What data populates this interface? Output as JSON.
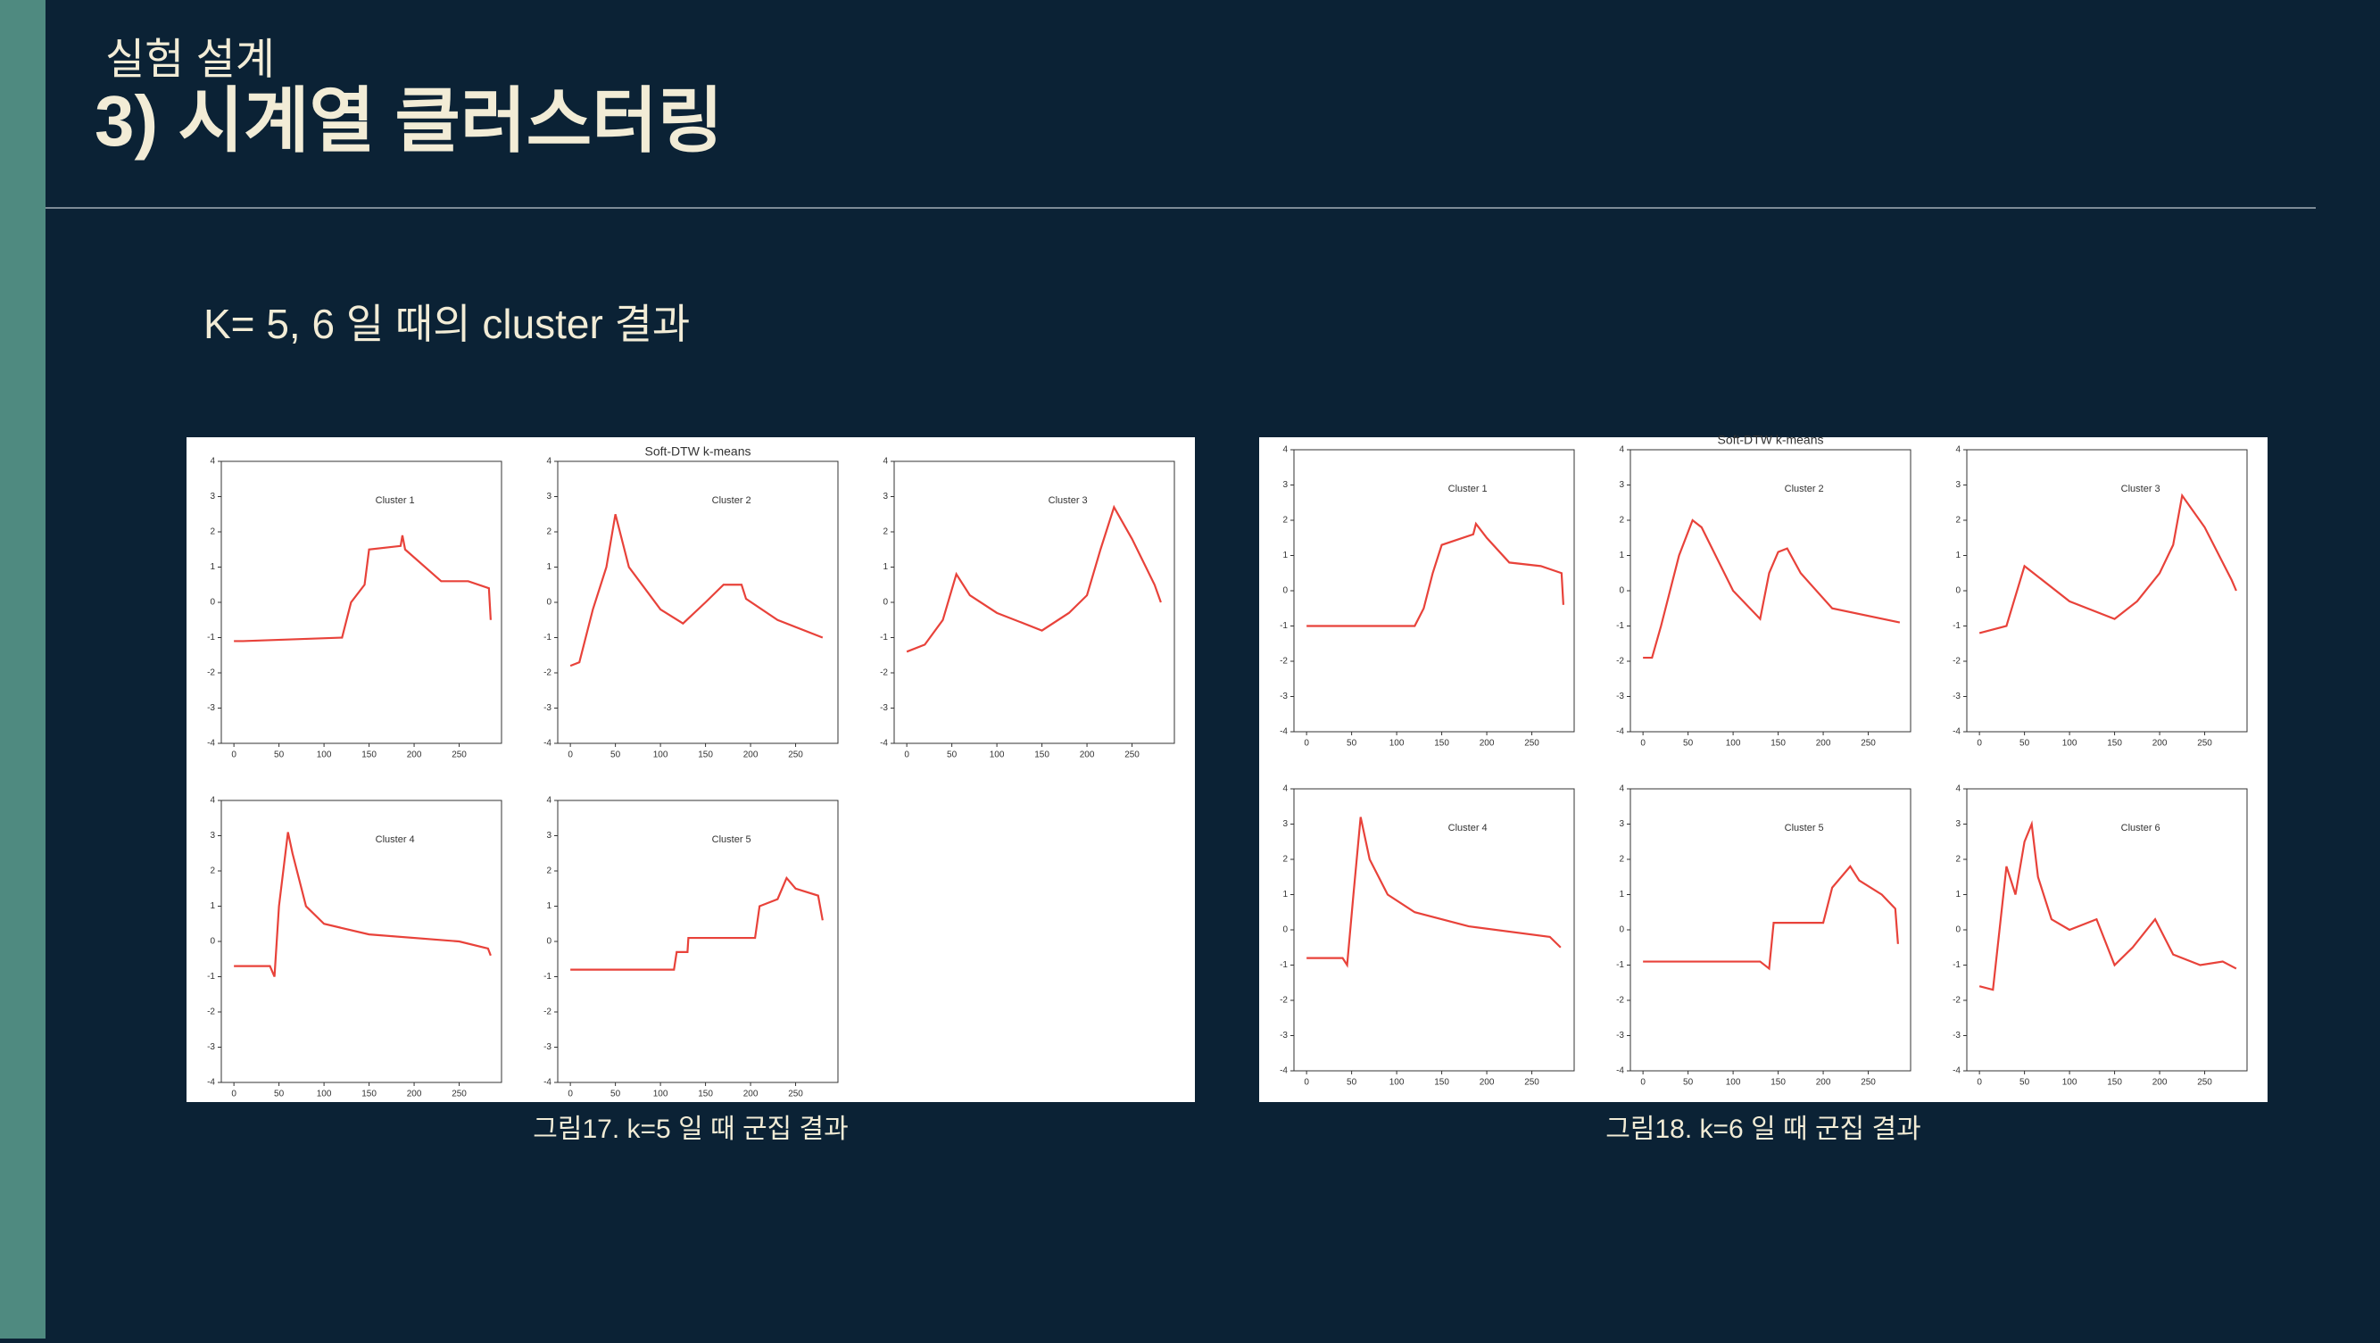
{
  "header": {
    "section": "실험 설계",
    "title": "3) 시계열 클러스터링"
  },
  "subtitle": "K= 5, 6 일 때의 cluster 결과",
  "figures": [
    {
      "chart_data": {
        "type": "line",
        "title": "Soft-DTW k-means",
        "xlim": [
          -14,
          297
        ],
        "ylim": [
          -4,
          4
        ],
        "xticks": [
          0,
          50,
          100,
          150,
          200,
          250
        ],
        "yticks": [
          4,
          3,
          2,
          1,
          0,
          -1,
          -2,
          -3,
          -4
        ],
        "color": "#e8423a",
        "panels": [
          {
            "label": "Cluster 1",
            "x": [
              0,
              10,
              120,
              130,
              145,
              150,
              185,
              187,
              190,
              230,
              260,
              283,
              285
            ],
            "y": [
              -1.1,
              -1.1,
              -1.0,
              0,
              0.5,
              1.5,
              1.6,
              1.9,
              1.5,
              0.6,
              0.6,
              0.4,
              -0.5
            ]
          },
          {
            "label": "Cluster 2",
            "x": [
              0,
              10,
              25,
              40,
              50,
              55,
              65,
              100,
              125,
              150,
              170,
              190,
              195,
              230,
              280
            ],
            "y": [
              -1.8,
              -1.7,
              -0.2,
              1.0,
              2.5,
              2.0,
              1.0,
              -0.2,
              -0.6,
              0,
              0.5,
              0.5,
              0.1,
              -0.5,
              -1.0
            ]
          },
          {
            "label": "Cluster 3",
            "x": [
              0,
              20,
              40,
              55,
              70,
              100,
              150,
              180,
              200,
              215,
              230,
              250,
              275,
              282
            ],
            "y": [
              -1.4,
              -1.2,
              -0.5,
              0.8,
              0.2,
              -0.3,
              -0.8,
              -0.3,
              0.2,
              1.5,
              2.7,
              1.8,
              0.5,
              0
            ]
          },
          {
            "label": "Cluster 4",
            "x": [
              0,
              40,
              45,
              50,
              60,
              65,
              80,
              100,
              150,
              250,
              282,
              285
            ],
            "y": [
              -0.7,
              -0.7,
              -1.0,
              1.0,
              3.1,
              2.5,
              1.0,
              0.5,
              0.2,
              0,
              -0.2,
              -0.4
            ]
          },
          {
            "label": "Cluster 5",
            "x": [
              0,
              100,
              115,
              118,
              130,
              131,
              190,
              205,
              210,
              230,
              240,
              250,
              275,
              280
            ],
            "y": [
              -0.8,
              -0.8,
              -0.8,
              -0.3,
              -0.3,
              0.1,
              0.1,
              0.1,
              1.0,
              1.2,
              1.8,
              1.5,
              1.3,
              0.6
            ]
          }
        ]
      },
      "caption": "그림17. k=5 일 때 군집 결과"
    },
    {
      "chart_data": {
        "type": "line",
        "title": "Soft-DTW k-means",
        "xlim": [
          -14,
          297
        ],
        "ylim": [
          -4,
          4
        ],
        "xticks": [
          0,
          50,
          100,
          150,
          200,
          250
        ],
        "yticks": [
          4,
          3,
          2,
          1,
          0,
          -1,
          -2,
          -3,
          -4
        ],
        "color": "#e8423a",
        "panels": [
          {
            "label": "Cluster 1",
            "x": [
              0,
              120,
              130,
              140,
              150,
              185,
              188,
              200,
              225,
              260,
              283,
              285
            ],
            "y": [
              -1.0,
              -1.0,
              -0.5,
              0.5,
              1.3,
              1.6,
              1.9,
              1.5,
              0.8,
              0.7,
              0.5,
              -0.4
            ]
          },
          {
            "label": "Cluster 2",
            "x": [
              0,
              10,
              20,
              40,
              55,
              65,
              100,
              130,
              140,
              150,
              160,
              175,
              210,
              285
            ],
            "y": [
              -1.9,
              -1.9,
              -1.0,
              1.0,
              2.0,
              1.8,
              0,
              -0.8,
              0.5,
              1.1,
              1.2,
              0.5,
              -0.5,
              -0.9
            ]
          },
          {
            "label": "Cluster 3",
            "x": [
              0,
              30,
              50,
              60,
              100,
              150,
              175,
              200,
              215,
              225,
              250,
              280,
              285
            ],
            "y": [
              -1.2,
              -1.0,
              0.7,
              0.5,
              -0.3,
              -0.8,
              -0.3,
              0.5,
              1.3,
              2.7,
              1.8,
              0.3,
              0
            ]
          },
          {
            "label": "Cluster 4",
            "x": [
              0,
              40,
              45,
              52,
              60,
              70,
              90,
              120,
              180,
              270,
              282
            ],
            "y": [
              -0.8,
              -0.8,
              -1.0,
              1.0,
              3.2,
              2.0,
              1.0,
              0.5,
              0.1,
              -0.2,
              -0.5
            ]
          },
          {
            "label": "Cluster 5",
            "x": [
              0,
              130,
              140,
              145,
              200,
              210,
              230,
              240,
              265,
              280,
              283
            ],
            "y": [
              -0.9,
              -0.9,
              -1.1,
              0.2,
              0.2,
              1.2,
              1.8,
              1.4,
              1.0,
              0.6,
              -0.4
            ]
          },
          {
            "label": "Cluster 6",
            "x": [
              0,
              15,
              30,
              40,
              50,
              58,
              65,
              80,
              100,
              130,
              150,
              170,
              195,
              215,
              245,
              270,
              285
            ],
            "y": [
              -1.6,
              -1.7,
              1.8,
              1.0,
              2.5,
              3.0,
              1.5,
              0.3,
              0,
              0.3,
              -1.0,
              -0.5,
              0.3,
              -0.7,
              -1.0,
              -0.9,
              -1.1
            ]
          }
        ]
      },
      "caption": "그림18. k=6 일 때 군집 결과"
    }
  ]
}
